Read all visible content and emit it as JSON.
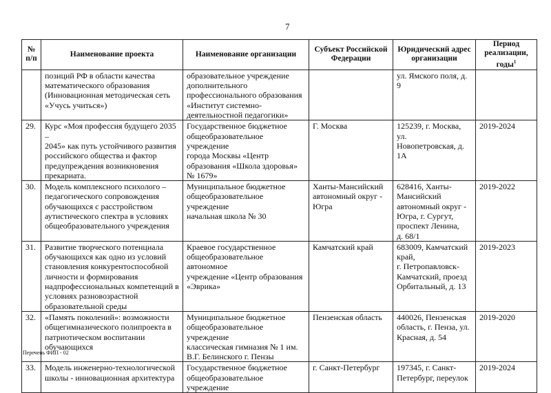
{
  "page_number": "7",
  "table": {
    "headers": [
      "№\nп/п",
      "Наименование проекта",
      "Наименование организации",
      "Субъект Российской Федерации",
      "Юридический адрес организации",
      "Период реализации, годы"
    ],
    "header_footnote_mark": "1",
    "rows": [
      {
        "num": "",
        "project": "позиций РФ в области качества\nматематического образования\n(Инновационная методическая сеть\n«Учусь учиться»)",
        "org": "образовательное учреждение\nдополнительного\nпрофессионального образования\n«Институт системно-\nдеятельностной педагогики»",
        "subject": "",
        "address": "ул. Ямского поля, д. 9",
        "period": ""
      },
      {
        "num": "29.",
        "project": "Курс «Моя профессия будущего 2035 –\n2045» как путь устойчивого развития\nроссийского общества и фактор\nпредупреждения возникновения\nпрекариата.",
        "org": "Государственное бюджетное\nобщеобразовательное учреждение\nгорода Москвы «Центр\nобразования «Школа здоровья»\n№ 1679»",
        "subject": "Г. Москва",
        "address": "125239, г. Москва, ул.\nНовопетровская, д. 1А",
        "period": "2019-2024"
      },
      {
        "num": "30.",
        "project": "Модель комплексного психолого –\nпедагогического сопровождения\nобучающихся с расстройством\nаутистического спектра в условиях\nобщеобразовательного учреждения",
        "org": "Муниципальное бюджетное\nобщеобразовательное учреждение\nначальная школа № 30",
        "subject": "Ханты-Мансийский\nавтономный округ -\nЮгра",
        "address": "628416, Ханты-\nМансийский\nавтономный округ -\nЮгра, г. Сургут,\nпроспект Ленина,\nд. 68/1",
        "period": "2019-2022"
      },
      {
        "num": "31.",
        "project": "Развитие творческого потенциала\nобучающихся как одно из условий\nстановления конкурентоспособной\nличности и формирования\nнадпрофессиональных компетенций в\nусловиях разновозрастной\nобразовательной среды",
        "org": "Краевое государственное\nобщеобразовательное автономное\nучреждение «Центр образования\n«Эврика»",
        "subject": "Камчатский край",
        "address": "683009, Камчатский\nкрай,\nг. Петропавловск-\nКамчатский, проезд\nОрбитальный, д. 13",
        "period": "2019-2023"
      },
      {
        "num": "32.",
        "project": "«Память поколений»: возможности\nобщегимназического полипроекта в\nпатриотическом воспитании\nобучающихся",
        "org": "Муниципальное бюджетное\nобщеобразовательное учреждение\nклассическая гимназия № 1 им.\nВ.Г. Белинского г. Пензы",
        "subject": "Пензенская область",
        "address": "440026, Пензенская\nобласть, г. Пенза, ул.\nКрасная, д. 54",
        "period": "2019-2020"
      },
      {
        "num": "33.",
        "project": "Модель инженерно-технологической\nшколы - инновационная архитектура",
        "org": "Государственное бюджетное\nобщеобразовательное учреждение",
        "subject": "г. Санкт-Петербург",
        "address": "197345, г. Санкт-\nПетербург, переулок",
        "period": "2019-2024"
      }
    ]
  },
  "footer": "Перечень ФИП - 02"
}
